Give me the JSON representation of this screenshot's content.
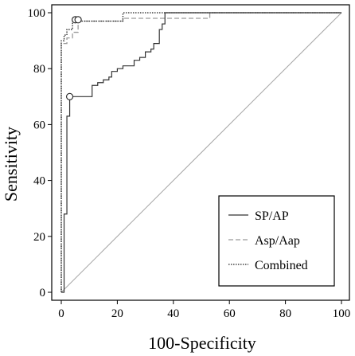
{
  "chart_data": {
    "type": "line",
    "xlabel": "100-Specificity",
    "ylabel": "Sensitivity",
    "xlim": [
      0,
      100
    ],
    "ylim": [
      0,
      100
    ],
    "x_ticks": [
      0,
      20,
      40,
      60,
      80,
      100
    ],
    "y_ticks": [
      0,
      20,
      40,
      60,
      80,
      100
    ],
    "grid": false,
    "legend_position": "bottom-right",
    "reference_line": {
      "from": [
        0,
        0
      ],
      "to": [
        100,
        100
      ],
      "color": "#a6a6a6"
    },
    "series": [
      {
        "name": "SP/AP",
        "style": "solid",
        "color": "#333333",
        "x": [
          0,
          1,
          1,
          2,
          2,
          3,
          3,
          11,
          11,
          13,
          13,
          15,
          15,
          17,
          17,
          18,
          18,
          20,
          20,
          22,
          22,
          26,
          26,
          28,
          28,
          30,
          30,
          32,
          32,
          33,
          33,
          35,
          35,
          36,
          36,
          37,
          37,
          100
        ],
        "y": [
          0,
          0,
          28,
          28,
          63,
          63,
          70,
          70,
          74,
          74,
          75,
          75,
          76,
          76,
          77,
          77,
          79,
          79,
          80,
          80,
          81,
          81,
          83,
          83,
          84,
          84,
          86,
          86,
          87,
          87,
          89,
          89,
          94,
          94,
          96,
          96,
          100,
          100
        ],
        "optimal_point": {
          "x": 3,
          "y": 70
        }
      },
      {
        "name": "Asp/Aap",
        "style": "dashed",
        "color": "#9a9a9a",
        "x": [
          0,
          0,
          2,
          2,
          4,
          4,
          6,
          6,
          22,
          22,
          53,
          53,
          100
        ],
        "y": [
          0,
          89,
          89,
          91,
          91,
          93,
          93,
          97,
          97,
          98,
          98,
          100,
          100
        ],
        "optimal_point": {
          "x": 5,
          "y": 97.5
        }
      },
      {
        "name": "Combined",
        "style": "dotted",
        "color": "#222222",
        "x": [
          0,
          0,
          1,
          1,
          2,
          2,
          4,
          4,
          22,
          22,
          100
        ],
        "y": [
          0,
          90,
          90,
          92,
          92,
          94,
          94,
          97,
          97,
          100,
          100
        ],
        "optimal_point": {
          "x": 6,
          "y": 97.5
        }
      }
    ]
  }
}
